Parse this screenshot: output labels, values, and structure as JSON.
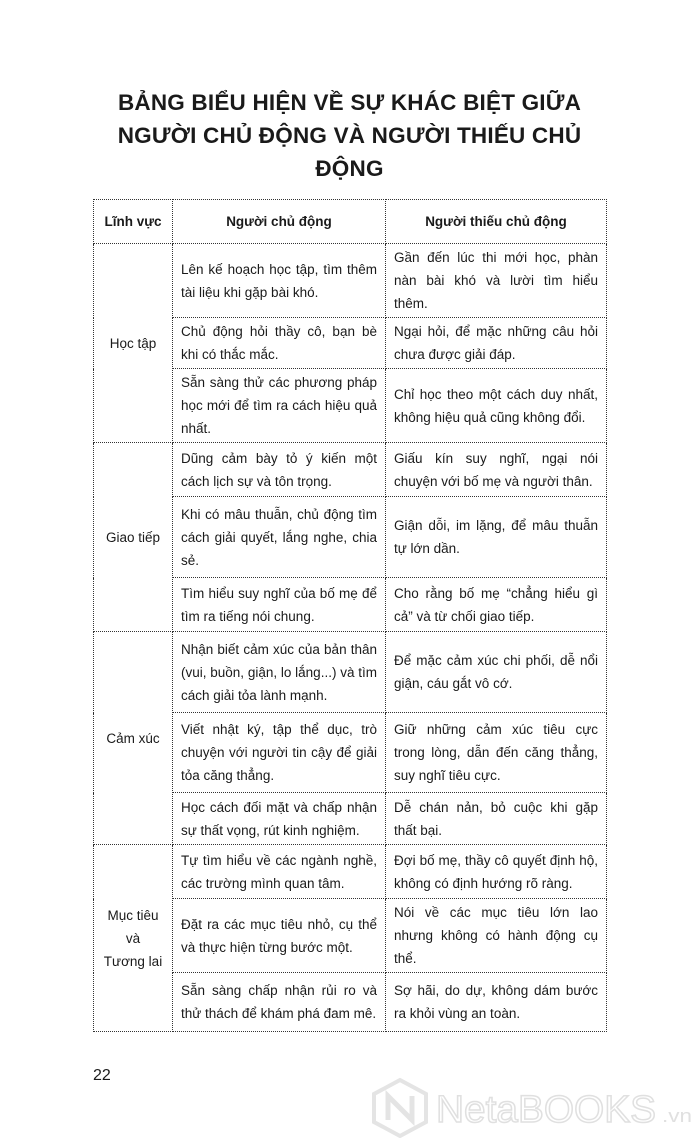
{
  "title": {
    "line1": "BẢNG BIỂU HIỆN VỀ SỰ KHÁC BIỆT GIỮA",
    "line2": "NGƯỜI CHỦ ĐỘNG VÀ NGƯỜI THIẾU CHỦ ĐỘNG"
  },
  "table": {
    "headers": [
      "Lĩnh vực",
      "Người chủ động",
      "Người thiếu chủ động"
    ],
    "groups": [
      {
        "area": "Học tập",
        "rows": [
          [
            "Lên kế hoạch học tập, tìm thêm tài liệu khi gặp bài khó.",
            "Gần đến lúc thi mới học, phàn nàn bài khó và lười tìm hiểu thêm."
          ],
          [
            "Chủ động hỏi thầy cô, bạn bè khi có thắc mắc.",
            "Ngại hỏi, để mặc những câu hỏi chưa được giải đáp."
          ],
          [
            "Sẵn sàng thử các phương pháp học mới để tìm ra cách hiệu quả nhất.",
            "Chỉ học theo một cách duy nhất, không hiệu quả cũng không đổi."
          ]
        ]
      },
      {
        "area": "Giao tiếp",
        "rows": [
          [
            "Dũng cảm bày tỏ ý kiến một cách lịch sự và tôn trọng.",
            "Giấu kín suy nghĩ, ngại nói chuyện với bố mẹ và người thân."
          ],
          [
            "Khi có mâu thuẫn, chủ động tìm cách giải quyết, lắng nghe, chia sẻ.",
            "Giận dỗi, im lặng, để mâu thuẫn tự lớn dần."
          ],
          [
            "Tìm hiểu suy nghĩ của bố mẹ để tìm ra tiếng nói chung.",
            "Cho rằng bố mẹ “chẳng hiểu gì cả” và từ chối giao tiếp."
          ]
        ]
      },
      {
        "area": "Cảm xúc",
        "rows": [
          [
            "Nhận biết cảm xúc của bản thân (vui, buồn, giận, lo lắng...) và tìm cách giải tỏa lành mạnh.",
            "Để mặc cảm xúc chi phối, dễ nổi giận, cáu gắt vô cớ."
          ],
          [
            "Viết nhật ký, tập thể dục, trò chuyện với người tin cậy để giải tỏa căng thẳng.",
            "Giữ những cảm xúc tiêu cực trong lòng, dẫn đến căng thẳng, suy nghĩ tiêu cực."
          ],
          [
            "Học cách đối mặt và chấp nhận sự thất vọng, rút kinh nghiệm.",
            "Dễ chán nản, bỏ cuộc khi gặp thất bại."
          ]
        ]
      },
      {
        "area_lines": [
          "Mục tiêu",
          "và",
          "Tương lai"
        ],
        "rows": [
          [
            "Tự tìm hiểu về các ngành nghề, các trường mình quan tâm.",
            "Đợi bố mẹ, thầy cô quyết định hộ, không có định hướng rõ ràng."
          ],
          [
            "Đặt ra các mục tiêu nhỏ, cụ thể và thực hiện từng bước một.",
            "Nói về các mục tiêu lớn lao nhưng không có hành động cụ thể."
          ],
          [
            "Sẵn sàng chấp nhận rủi ro và thử thách để khám phá đam mê.",
            "Sợ hãi, do dự, không dám bước ra khỏi vùng an toàn."
          ]
        ]
      }
    ]
  },
  "page_number": "22",
  "watermark": {
    "brand": "NetaBOOKS",
    "suffix": ".vn"
  }
}
